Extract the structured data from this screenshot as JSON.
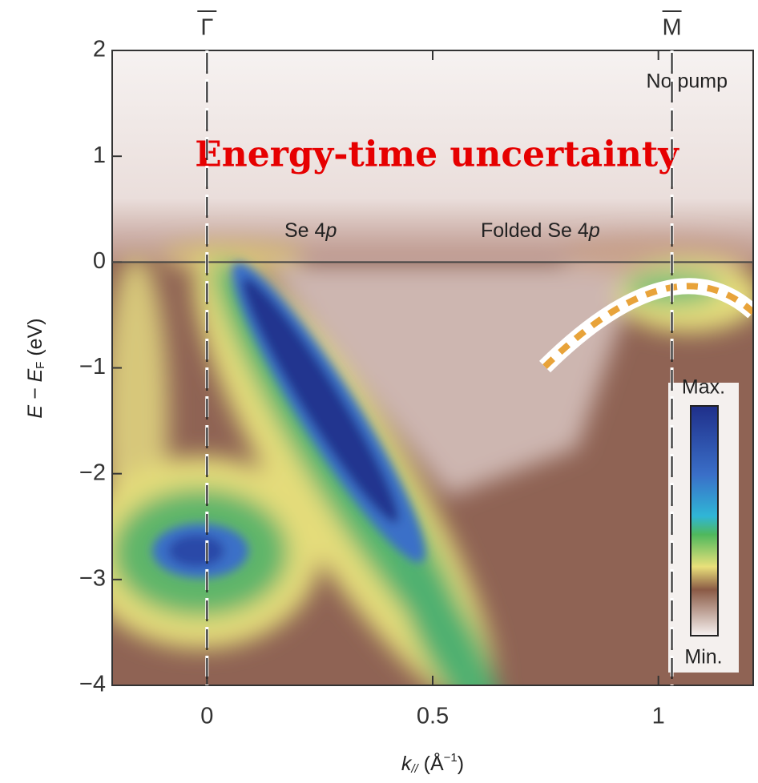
{
  "chart_data": {
    "type": "heatmap",
    "title": "Energy-time uncertainty",
    "annotation": "No pump",
    "band_labels": [
      [
        "Se 4",
        "p"
      ],
      [
        "Folded Se 4",
        "p"
      ]
    ],
    "xlabel": [
      "k",
      "//",
      " (Å",
      "−1",
      ")"
    ],
    "ylabel": [
      "E − E",
      "F",
      " (eV)"
    ],
    "symmetry_points": [
      {
        "label": "Γ",
        "x": 0
      },
      {
        "label": "M",
        "x": 1.03
      }
    ],
    "colorbar": [
      "Max.",
      "Min."
    ],
    "xlim": [
      -0.21,
      1.21
    ],
    "ylim": [
      -4,
      2
    ],
    "xticks": [
      0,
      0.5,
      1
    ],
    "yticks": [
      2,
      1,
      0,
      {
        "value": -1,
        "label": "−1"
      },
      {
        "value": -2,
        "label": "−2"
      },
      {
        "value": -3,
        "label": "−3"
      },
      {
        "value": -4,
        "label": "−4"
      }
    ]
  }
}
